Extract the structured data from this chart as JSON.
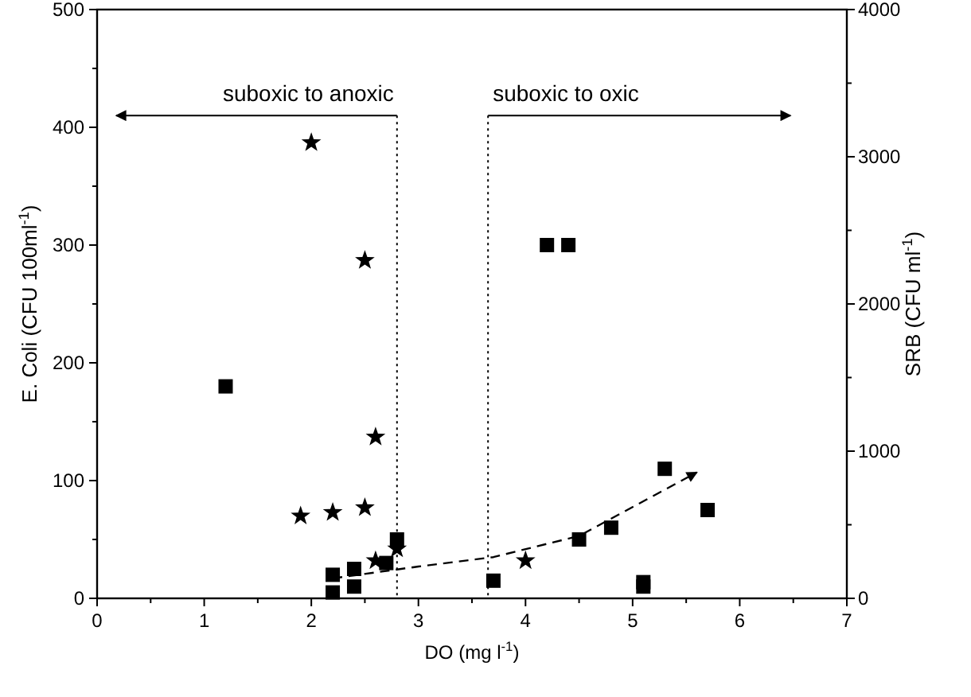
{
  "chart_data": {
    "type": "scatter",
    "xlabel": "DO (mg l$^{-1}$)",
    "ylabel": "E. Coli (CFU 100ml$^{-1}$)",
    "y2label": "SRB (CFU ml$^{-1}$)",
    "xlim": [
      0,
      7
    ],
    "xticks": [
      0,
      {
        "value": 0.5,
        "label": null
      },
      1,
      {
        "value": 1.5,
        "label": null
      },
      2,
      {
        "value": 2.5,
        "label": null
      },
      3,
      {
        "value": 3.5,
        "label": null
      },
      4,
      {
        "value": 4.5,
        "label": null
      },
      5,
      {
        "value": 5.5,
        "label": null
      },
      6,
      {
        "value": 6.5,
        "label": null
      },
      7
    ],
    "ylim": [
      0,
      500
    ],
    "yticks": [
      0,
      {
        "value": 50,
        "label": null
      },
      100,
      {
        "value": 150,
        "label": null
      },
      200,
      {
        "value": 250,
        "label": null
      },
      300,
      {
        "value": 350,
        "label": null
      },
      400,
      {
        "value": 450,
        "label": null
      },
      500
    ],
    "y2lim": [
      0,
      4000
    ],
    "y2ticks": [
      0,
      {
        "value": 500,
        "label": null
      },
      1000,
      {
        "value": 1500,
        "label": null
      },
      2000,
      {
        "value": 2500,
        "label": null
      },
      3000,
      {
        "value": 3500,
        "label": null
      },
      4000
    ],
    "grid": false,
    "series": [
      {
        "marker": "star",
        "color": "#000000",
        "x": [
          1.9,
          2.0,
          2.2,
          2.5,
          2.5,
          2.6,
          2.6,
          2.8,
          4.0
        ],
        "values": [
          70,
          387,
          73,
          287,
          77,
          137,
          32,
          42,
          32
        ]
      },
      {
        "marker": "square",
        "color": "#000000",
        "axis": "y2",
        "x": [
          1.2,
          2.2,
          2.2,
          2.4,
          2.4,
          2.7,
          2.8,
          3.7,
          4.2,
          4.4,
          4.5,
          4.8,
          5.1,
          5.1,
          5.3,
          5.7
        ],
        "values": [
          1440,
          160,
          40,
          200,
          80,
          240,
          400,
          120,
          2400,
          2400,
          400,
          480,
          110,
          80,
          880,
          600
        ]
      },
      {
        "type": "line",
        "line_style": "dashed",
        "color": "#000000",
        "x": [
          2.2,
          3,
          3.7,
          4.5,
          5.6
        ],
        "values": [
          17,
          27,
          35,
          53,
          107
        ]
      }
    ],
    "ref_lines": [
      {
        "axis": "x",
        "value": 2.8,
        "label": null,
        "line_style": "dotted",
        "color": "#000000"
      },
      {
        "axis": "x",
        "value": 3.65,
        "label": null,
        "line_style": "dotted",
        "color": "#000000"
      }
    ],
    "annotations": [
      "suboxic to anoxic",
      "suboxic to oxic"
    ]
  }
}
